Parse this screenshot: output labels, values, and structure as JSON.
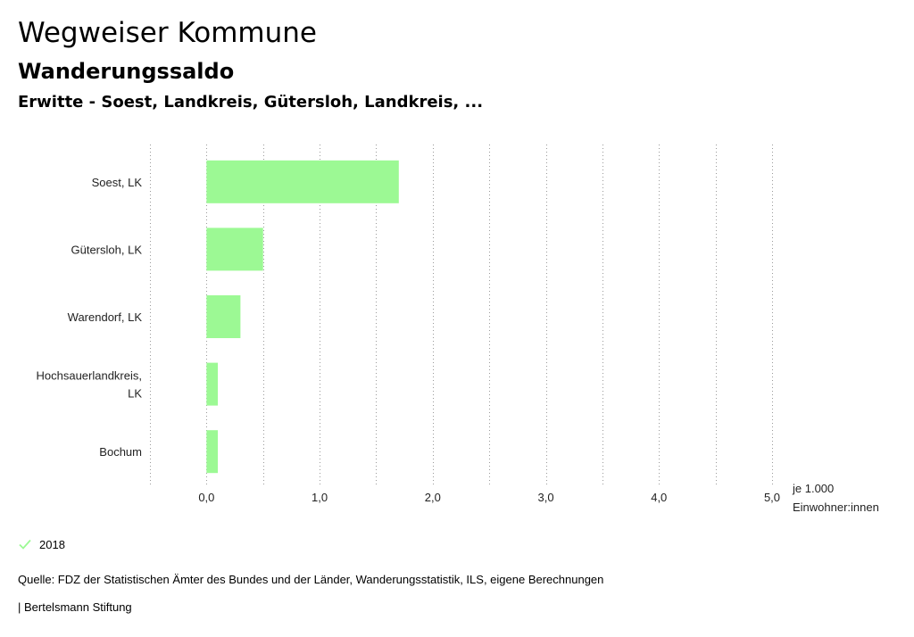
{
  "header": {
    "title": "Wegweiser Kommune",
    "subtitle": "Wanderungssaldo",
    "regions": "Erwitte - Soest, Landkreis, Gütersloh, Landkreis, ..."
  },
  "chart_data": {
    "type": "bar",
    "orientation": "horizontal",
    "categories": [
      [
        "Soest, LK"
      ],
      [
        "Gütersloh, LK"
      ],
      [
        "Warendorf, LK"
      ],
      [
        "Hochsauerlandkreis,",
        "LK"
      ],
      [
        "Bochum"
      ]
    ],
    "series": [
      {
        "name": "2018",
        "values": [
          1.7,
          0.5,
          0.3,
          0.1,
          0.1
        ]
      }
    ],
    "xlim": [
      -0.5,
      5.0
    ],
    "xticks": [
      0,
      1,
      2,
      3,
      4,
      5
    ],
    "xtick_labels": [
      "0,0",
      "1,0",
      "2,0",
      "3,0",
      "4,0",
      "5,0"
    ],
    "xunit": [
      "je 1.000",
      "Einwohner:innen"
    ],
    "grid": true,
    "bar_color": "#9cf994"
  },
  "legend": {
    "label": "2018",
    "color": "#9cf994"
  },
  "source": "Quelle: FDZ der Statistischen Ämter des Bundes und der Länder, Wanderungsstatistik, ILS, eigene Berechnungen",
  "footer": "| Bertelsmann Stiftung",
  "colors": {
    "grid": "#9a9a9a",
    "text": "#222222"
  }
}
